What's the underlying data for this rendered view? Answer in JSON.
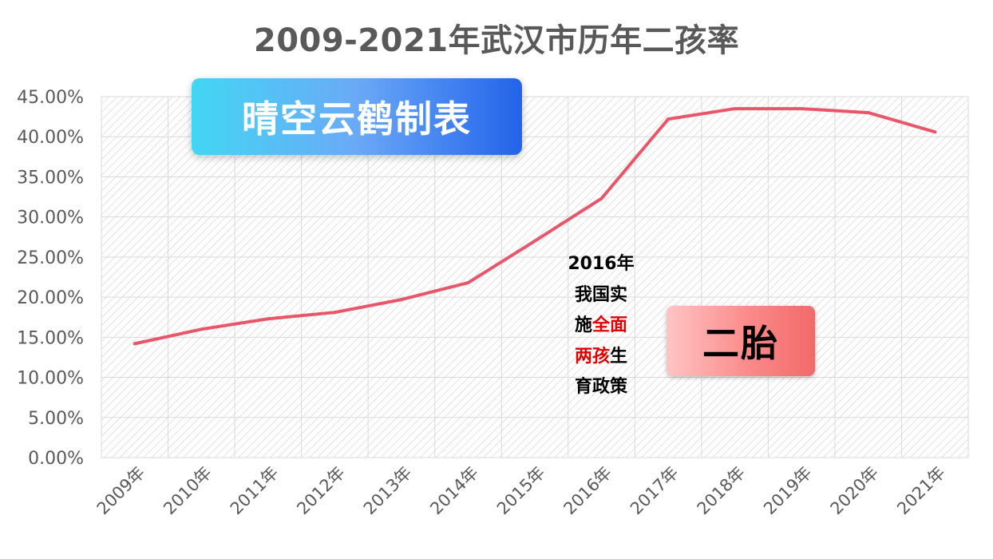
{
  "chart_data": {
    "type": "line",
    "title": "2009-2021年武汉市历年二孩率",
    "categories": [
      "2009年",
      "2010年",
      "2011年",
      "2012年",
      "2013年",
      "2014年",
      "2015年",
      "2016年",
      "2017年",
      "2018年",
      "2019年",
      "2020年",
      "2021年"
    ],
    "series": [
      {
        "values": [
          14.2,
          16.0,
          17.3,
          18.1,
          19.7,
          21.8,
          27.0,
          32.3,
          42.2,
          43.5,
          43.5,
          43.0,
          40.6
        ]
      }
    ],
    "ylim": [
      0,
      45
    ],
    "ytick_labels": [
      "0.00%",
      "5.00%",
      "10.00%",
      "15.00%",
      "20.00%",
      "25.00%",
      "30.00%",
      "35.00%",
      "40.00%",
      "45.00%"
    ],
    "grid": true,
    "line_color": "#e8566a"
  },
  "watermark": "晴空云鹤制表",
  "annotation": {
    "line1": "2016年",
    "line2": "我国实",
    "line3_a": "施",
    "line3_b": "全面",
    "line4_a": "两孩",
    "line4_b": "生",
    "line5": "育政策"
  },
  "badge": "二胎"
}
